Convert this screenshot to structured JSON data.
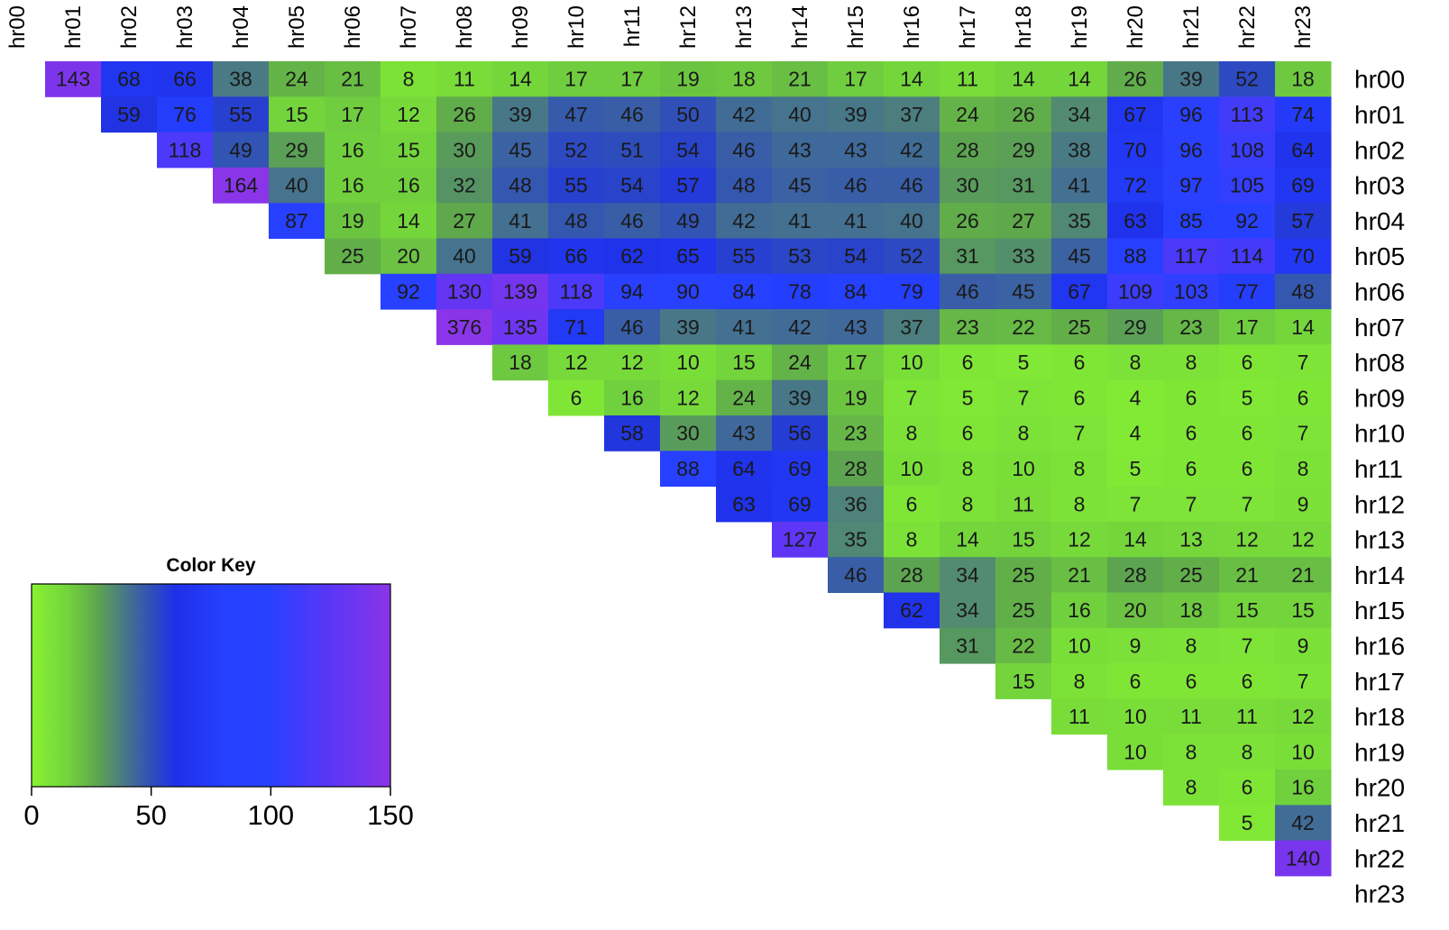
{
  "chart_data": {
    "type": "heatmap",
    "layout": "upper-triangle",
    "labels": [
      "hr00",
      "hr01",
      "hr02",
      "hr03",
      "hr04",
      "hr05",
      "hr06",
      "hr07",
      "hr08",
      "hr09",
      "hr10",
      "hr11",
      "hr12",
      "hr13",
      "hr14",
      "hr15",
      "hr16",
      "hr17",
      "hr18",
      "hr19",
      "hr20",
      "hr21",
      "hr22",
      "hr23"
    ],
    "rows": [
      [
        143,
        68,
        66,
        38,
        24,
        21,
        8,
        11,
        14,
        17,
        17,
        19,
        18,
        21,
        17,
        14,
        11,
        14,
        14,
        26,
        39,
        52,
        18
      ],
      [
        59,
        76,
        55,
        15,
        17,
        12,
        26,
        39,
        47,
        46,
        50,
        42,
        40,
        39,
        37,
        24,
        26,
        34,
        67,
        96,
        113,
        74
      ],
      [
        118,
        49,
        29,
        16,
        15,
        30,
        45,
        52,
        51,
        54,
        46,
        43,
        43,
        42,
        28,
        29,
        38,
        70,
        96,
        108,
        64
      ],
      [
        164,
        40,
        16,
        16,
        32,
        48,
        55,
        54,
        57,
        48,
        45,
        46,
        46,
        30,
        31,
        41,
        72,
        97,
        105,
        69
      ],
      [
        87,
        19,
        14,
        27,
        41,
        48,
        46,
        49,
        42,
        41,
        41,
        40,
        26,
        27,
        35,
        63,
        85,
        92,
        57
      ],
      [
        25,
        20,
        40,
        59,
        66,
        62,
        65,
        55,
        53,
        54,
        52,
        31,
        33,
        45,
        88,
        117,
        114,
        70
      ],
      [
        92,
        130,
        139,
        118,
        94,
        90,
        84,
        78,
        84,
        79,
        46,
        45,
        67,
        109,
        103,
        77,
        48
      ],
      [
        376,
        135,
        71,
        46,
        39,
        41,
        42,
        43,
        37,
        23,
        22,
        25,
        29,
        23,
        17,
        14
      ],
      [
        18,
        12,
        12,
        10,
        15,
        24,
        17,
        10,
        6,
        5,
        6,
        8,
        8,
        6,
        7
      ],
      [
        6,
        16,
        12,
        24,
        39,
        19,
        7,
        5,
        7,
        6,
        4,
        6,
        5,
        6
      ],
      [
        58,
        30,
        43,
        56,
        23,
        8,
        6,
        8,
        7,
        4,
        6,
        6,
        7
      ],
      [
        88,
        64,
        69,
        28,
        10,
        8,
        10,
        8,
        5,
        6,
        6,
        8
      ],
      [
        63,
        69,
        36,
        6,
        8,
        11,
        8,
        7,
        7,
        7,
        9
      ],
      [
        127,
        35,
        8,
        14,
        15,
        12,
        14,
        13,
        12,
        12
      ],
      [
        46,
        28,
        34,
        25,
        21,
        28,
        25,
        21,
        21
      ],
      [
        62,
        34,
        25,
        16,
        20,
        18,
        15,
        15
      ],
      [
        31,
        22,
        10,
        9,
        8,
        7,
        9
      ],
      [
        15,
        8,
        6,
        6,
        6,
        7
      ],
      [
        11,
        10,
        11,
        11,
        12
      ],
      [
        10,
        8,
        8,
        10
      ],
      [
        8,
        6,
        16
      ],
      [
        5,
        42
      ],
      [
        140
      ],
      []
    ],
    "color_key": {
      "title": "Color Key",
      "min": 0,
      "max": 150,
      "ticks": [
        "0",
        "50",
        "100",
        "150"
      ],
      "tick_values": [
        0,
        50,
        100,
        150
      ],
      "colors": [
        {
          "value": 0,
          "color": "#88f232"
        },
        {
          "value": 15,
          "color": "#73d43c"
        },
        {
          "value": 27,
          "color": "#5fa84c"
        },
        {
          "value": 38,
          "color": "#4a7a84"
        },
        {
          "value": 50,
          "color": "#3050b8"
        },
        {
          "value": 60,
          "color": "#1f30e8"
        },
        {
          "value": 80,
          "color": "#2540ff"
        },
        {
          "value": 100,
          "color": "#2a40ff"
        },
        {
          "value": 125,
          "color": "#5b36f6"
        },
        {
          "value": 150,
          "color": "#8a35e8"
        }
      ]
    }
  }
}
